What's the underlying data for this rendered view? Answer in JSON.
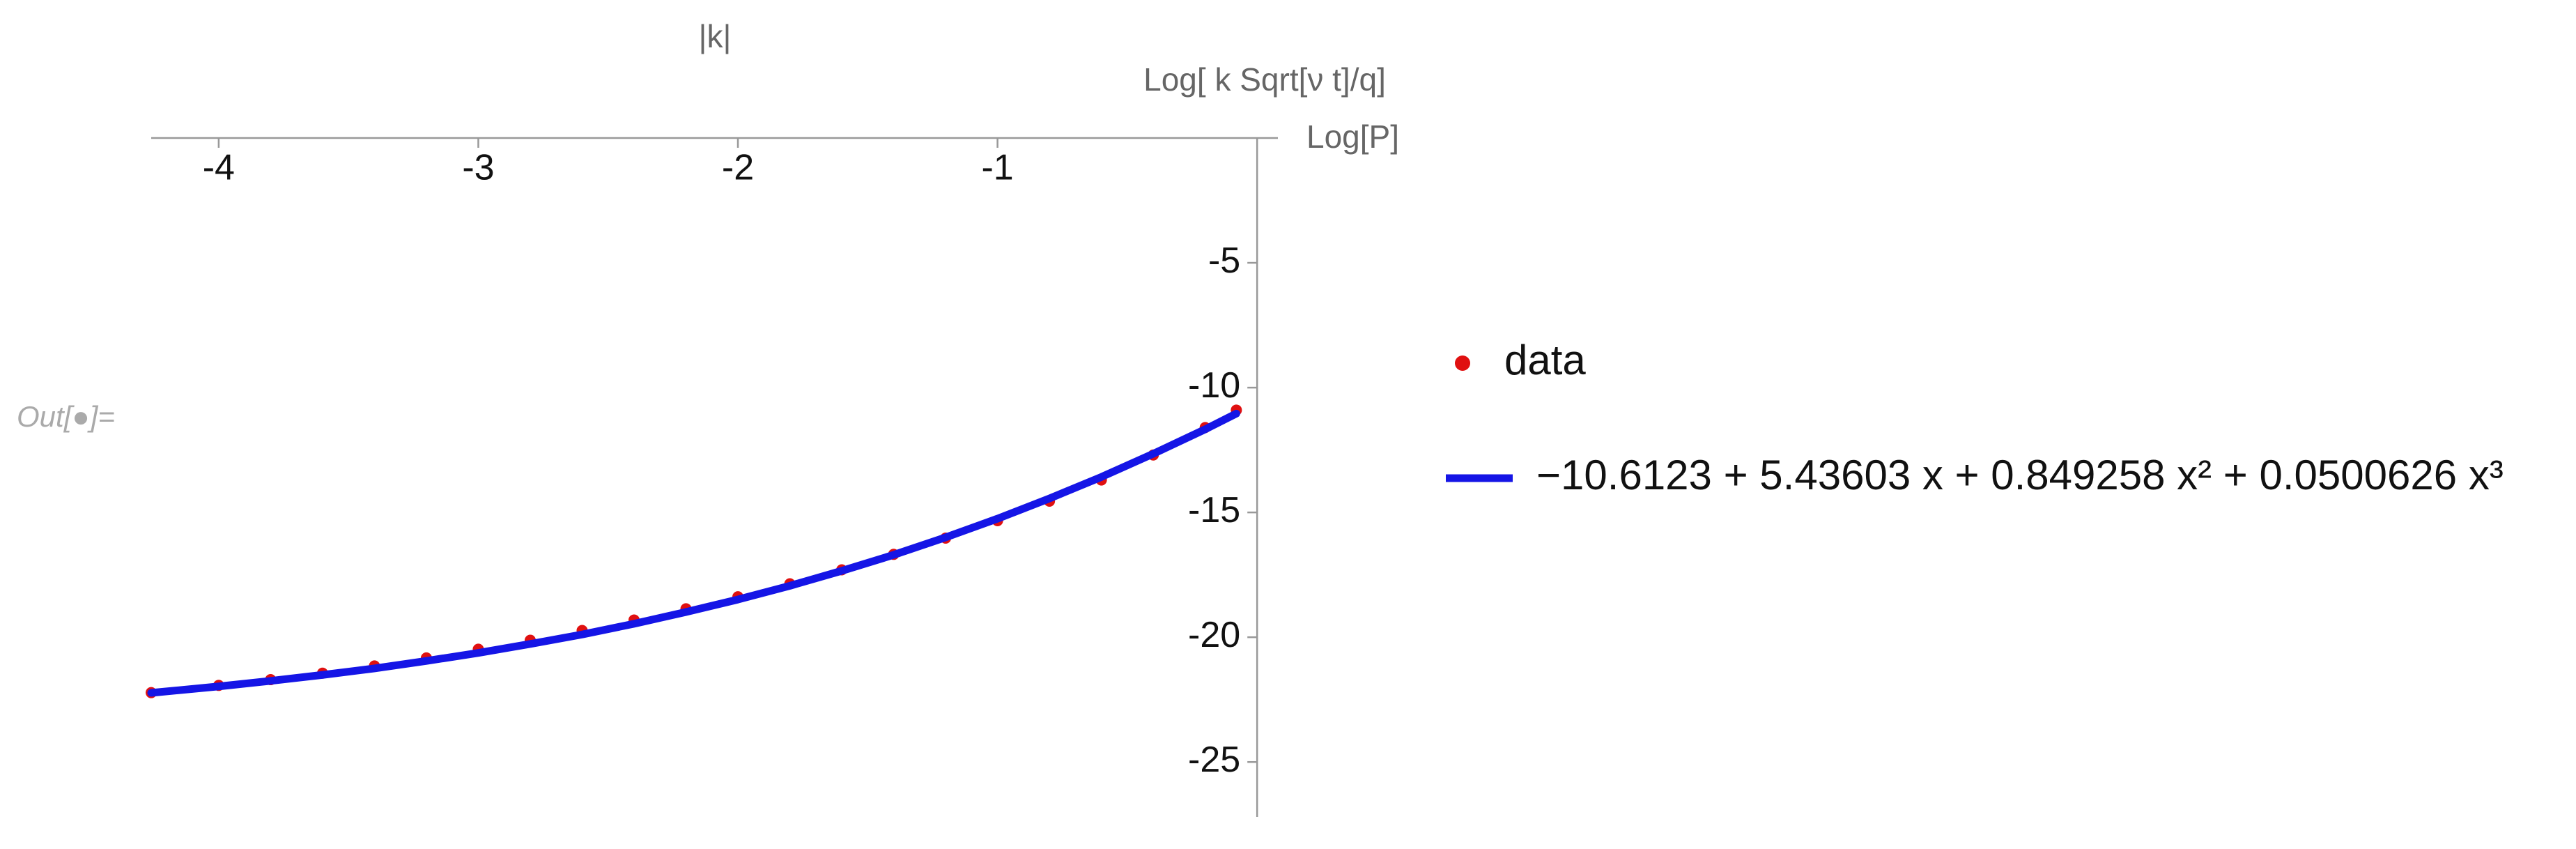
{
  "cell_label": "Out[●]=",
  "chart_data": {
    "type": "scatter",
    "title": "|k|",
    "xlabel": "Log[ k Sqrt[ν t]/q]",
    "ylabel": "Log[P]",
    "xlim": [
      -4.26,
      0.08
    ],
    "ylim": [
      -27.2,
      0
    ],
    "xticks": [
      -4,
      -3,
      -2,
      -1
    ],
    "yticks": [
      -5,
      -10,
      -15,
      -20,
      -25
    ],
    "series": [
      {
        "name": "data",
        "color": "#e01010",
        "style": "points",
        "x": [
          -4.26,
          -4.0,
          -3.8,
          -3.6,
          -3.4,
          -3.2,
          -3.0,
          -2.8,
          -2.6,
          -2.4,
          -2.2,
          -2.0,
          -1.8,
          -1.6,
          -1.4,
          -1.2,
          -1.0,
          -0.8,
          -0.6,
          -0.4,
          -0.2,
          -0.08
        ],
        "values": [
          -22.22,
          -21.93,
          -21.7,
          -21.44,
          -21.15,
          -20.83,
          -20.48,
          -20.12,
          -19.73,
          -19.31,
          -18.86,
          -18.38,
          -17.86,
          -17.3,
          -16.68,
          -16.03,
          -15.33,
          -14.55,
          -13.7,
          -12.7,
          -11.6,
          -10.9
        ]
      },
      {
        "name": "−10.6123 + 5.43603 x + 0.849258 x² + 0.0500626 x³",
        "color": "#1515e6",
        "style": "line",
        "x": [
          -4.26,
          -4.0,
          -3.8,
          -3.6,
          -3.4,
          -3.2,
          -3.0,
          -2.8,
          -2.6,
          -2.4,
          -2.2,
          -2.0,
          -1.8,
          -1.6,
          -1.4,
          -1.2,
          -1.0,
          -0.8,
          -0.6,
          -0.4,
          -0.2,
          -0.08
        ],
        "values": [
          -22.23,
          -21.97,
          -21.75,
          -21.51,
          -21.25,
          -20.95,
          -20.63,
          -20.27,
          -19.89,
          -19.46,
          -18.99,
          -18.49,
          -17.94,
          -17.34,
          -16.7,
          -16.0,
          -15.25,
          -14.44,
          -13.58,
          -12.65,
          -11.67,
          -11.04
        ]
      }
    ]
  }
}
